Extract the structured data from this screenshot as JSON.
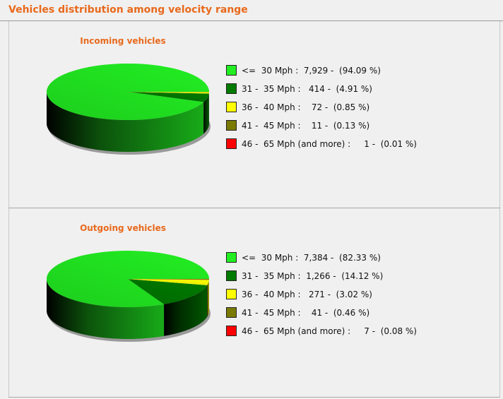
{
  "page": {
    "title": "Vehicles distribution among velocity range"
  },
  "colors": {
    "title": "#e8691c",
    "slices": [
      "#22ee22",
      "#007a00",
      "#ffff00",
      "#7a7a00",
      "#ff0000"
    ]
  },
  "chart_data": [
    {
      "type": "pie",
      "title": "Incoming vehicles",
      "categories": [
        "<= 30 Mph",
        "31 - 35 Mph",
        "36 - 40 Mph",
        "41 - 45 Mph",
        "46 - 65 Mph (and more)"
      ],
      "values": [
        7929,
        414,
        72,
        11,
        1
      ],
      "percentages": [
        94.09,
        4.91,
        0.85,
        0.13,
        0.01
      ],
      "legend_position": "right",
      "legend": [
        "<=  30 Mph :  7,929 -  (94.09 %)",
        "31 -  35 Mph :   414 -  (4.91 %)",
        "36 -  40 Mph :    72 -  (0.85 %)",
        "41 -  45 Mph :    11 -  (0.13 %)",
        "46 -  65 Mph (and more) :     1 -  (0.01 %)"
      ]
    },
    {
      "type": "pie",
      "title": "Outgoing vehicles",
      "categories": [
        "<= 30 Mph",
        "31 - 35 Mph",
        "36 - 40 Mph",
        "41 - 45 Mph",
        "46 - 65 Mph (and more)"
      ],
      "values": [
        7384,
        1266,
        271,
        41,
        7
      ],
      "percentages": [
        82.33,
        14.12,
        3.02,
        0.46,
        0.08
      ],
      "legend_position": "right",
      "legend": [
        "<=  30 Mph :  7,384 -  (82.33 %)",
        "31 -  35 Mph :  1,266 -  (14.12 %)",
        "36 -  40 Mph :   271 -  (3.02 %)",
        "41 -  45 Mph :    41 -  (0.46 %)",
        "46 -  65 Mph (and more) :     7 -  (0.08 %)"
      ]
    }
  ]
}
